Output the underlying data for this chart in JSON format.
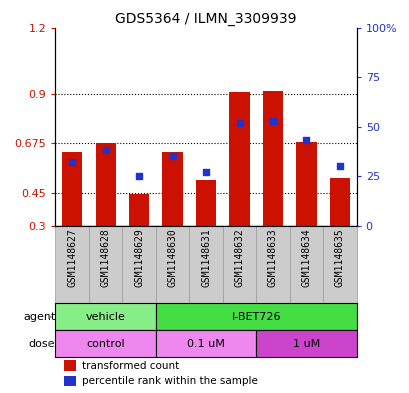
{
  "title": "GDS5364 / ILMN_3309939",
  "samples": [
    "GSM1148627",
    "GSM1148628",
    "GSM1148629",
    "GSM1148630",
    "GSM1148631",
    "GSM1148632",
    "GSM1148633",
    "GSM1148634",
    "GSM1148635"
  ],
  "transformed_counts": [
    0.635,
    0.675,
    0.445,
    0.635,
    0.505,
    0.905,
    0.91,
    0.68,
    0.515
  ],
  "percentile_ranks": [
    32,
    38,
    25,
    35,
    27,
    52,
    53,
    43,
    30
  ],
  "bar_bottom": 0.3,
  "ylim_left": [
    0.3,
    1.2
  ],
  "ylim_right": [
    0,
    100
  ],
  "yticks_left": [
    0.3,
    0.45,
    0.675,
    0.9,
    1.2
  ],
  "yticks_right": [
    0,
    25,
    50,
    75,
    100
  ],
  "ytick_labels_left": [
    "0.3",
    "0.45",
    "0.675",
    "0.9",
    "1.2"
  ],
  "ytick_labels_right": [
    "0",
    "25",
    "50",
    "75",
    "100%"
  ],
  "bar_color": "#CC1100",
  "percentile_color": "#2233CC",
  "agent_row": [
    {
      "label": "vehicle",
      "start": 0,
      "end": 3,
      "color": "#88EE88"
    },
    {
      "label": "I-BET726",
      "start": 3,
      "end": 9,
      "color": "#44DD44"
    }
  ],
  "dose_row": [
    {
      "label": "control",
      "start": 0,
      "end": 3,
      "color": "#EE88EE"
    },
    {
      "label": "0.1 uM",
      "start": 3,
      "end": 6,
      "color": "#EE88EE"
    },
    {
      "label": "1 uM",
      "start": 6,
      "end": 9,
      "color": "#CC44CC"
    }
  ],
  "legend_bar_label": "transformed count",
  "legend_pct_label": "percentile rank within the sample",
  "xlabel_bg_color": "#CCCCCC",
  "xlabel_border_color": "#999999"
}
